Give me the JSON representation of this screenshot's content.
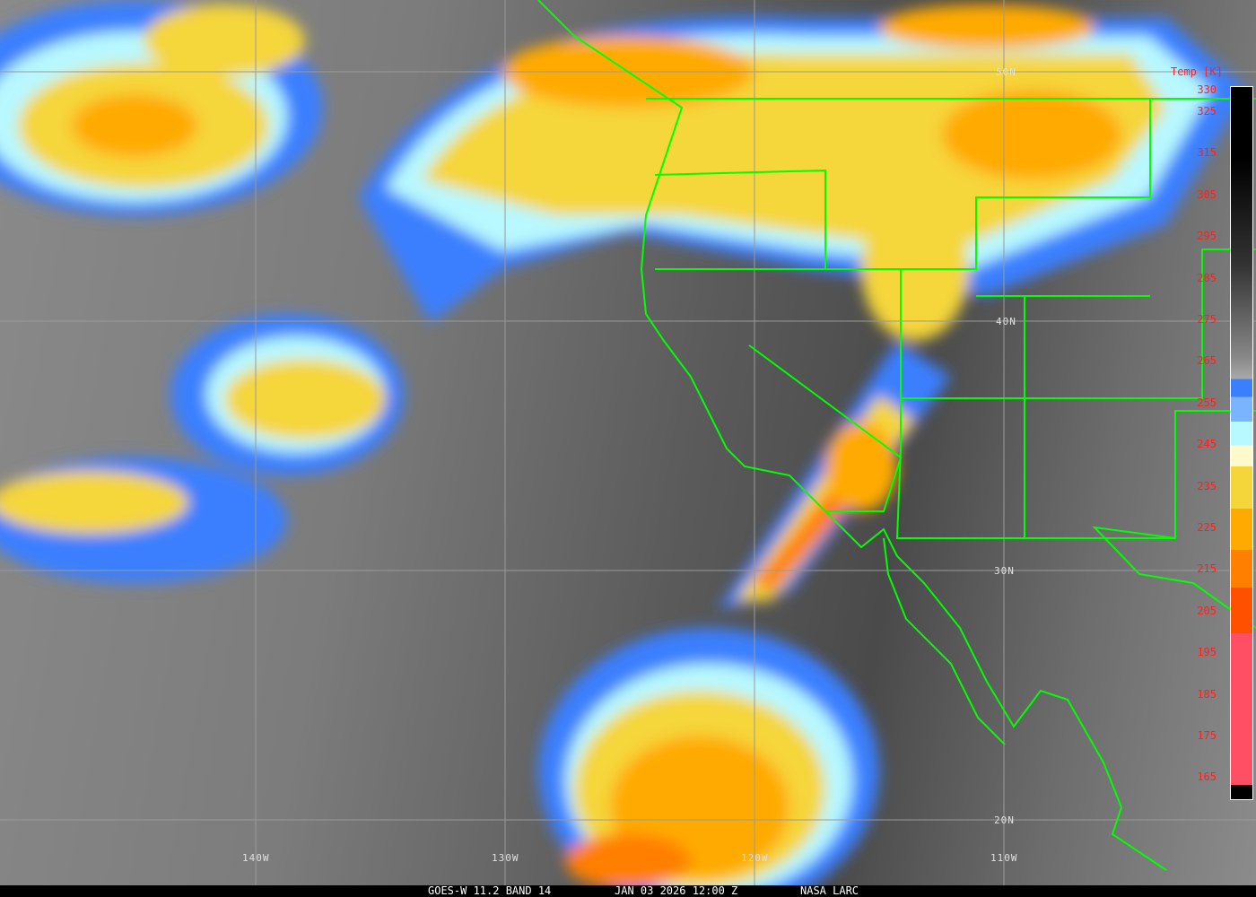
{
  "caption": {
    "satellite": "GOES-W 11.2 BAND 14",
    "datetime": "JAN 03 2026 12:00 Z",
    "credit": "NASA LARC"
  },
  "colorbar": {
    "title": "Temp [K]",
    "ticks": [
      "330",
      "325",
      "315",
      "305",
      "295",
      "285",
      "275",
      "265",
      "255",
      "245",
      "235",
      "225",
      "215",
      "205",
      "195",
      "185",
      "175",
      "165"
    ]
  },
  "grid": {
    "lat_labels": [
      "50N",
      "40N",
      "30N",
      "20N"
    ],
    "lon_labels": [
      "140W",
      "130W",
      "120W",
      "110W"
    ]
  },
  "colors": {
    "coast": "#00ff00",
    "grid": "#9a9a9a",
    "label": "#ff2020"
  }
}
